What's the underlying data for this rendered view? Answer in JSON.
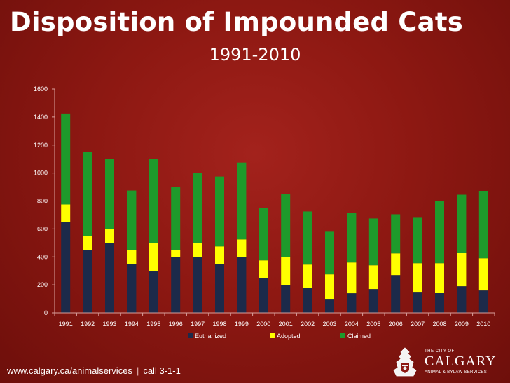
{
  "title": "Disposition of Impounded Cats",
  "subtitle": "1991-2010",
  "footer": {
    "url": "www.calgary.ca/animalservices",
    "separator": "|",
    "phone": "call 3-1-1"
  },
  "logo": {
    "small_text": "THE CITY OF",
    "name": "CALGARY",
    "sub_text": "ANIMAL & BYLAW SERVICES"
  },
  "colors": {
    "euthanized": "#1c2a4a",
    "adopted": "#ffff00",
    "claimed": "#1e9a2b",
    "plot_bg": "#8a1611"
  },
  "chart_data": {
    "type": "bar",
    "stacked": true,
    "categories": [
      "1991",
      "1992",
      "1993",
      "1994",
      "1995",
      "1996",
      "1997",
      "1998",
      "1999",
      "2000",
      "2001",
      "2002",
      "2003",
      "2004",
      "2005",
      "2006",
      "2007",
      "2008",
      "2009",
      "2010"
    ],
    "series": [
      {
        "name": "Euthanized",
        "values": [
          650,
          450,
          500,
          350,
          300,
          400,
          400,
          350,
          400,
          250,
          200,
          180,
          100,
          140,
          170,
          270,
          150,
          145,
          190,
          160
        ]
      },
      {
        "name": "Adopted",
        "values": [
          125,
          100,
          100,
          100,
          200,
          50,
          100,
          125,
          125,
          125,
          200,
          165,
          175,
          220,
          170,
          155,
          205,
          210,
          240,
          230
        ]
      },
      {
        "name": "Claimed",
        "values": [
          650,
          600,
          500,
          425,
          600,
          450,
          500,
          500,
          550,
          375,
          450,
          380,
          305,
          355,
          335,
          280,
          325,
          445,
          415,
          480
        ]
      }
    ],
    "ylim": [
      0,
      1600
    ],
    "yticks": [
      0,
      200,
      400,
      600,
      800,
      1000,
      1200,
      1400,
      1600
    ],
    "grid": false,
    "legend": "bottom"
  }
}
